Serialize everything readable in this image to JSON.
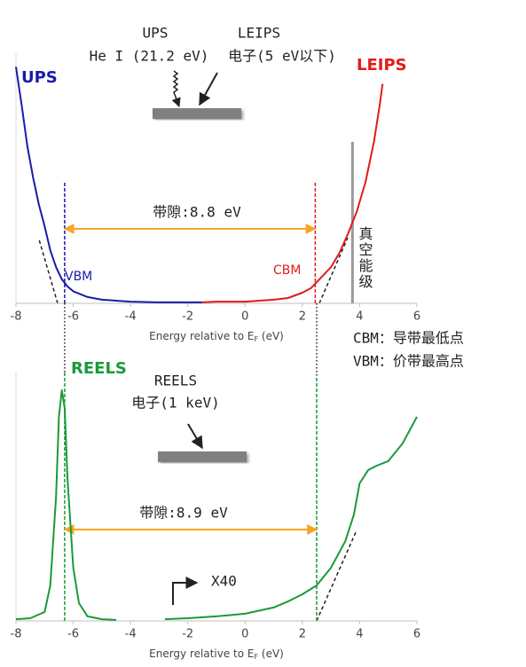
{
  "chart_data": [
    {
      "type": "line",
      "xlabel": [
        "Energy relative to E",
        "F",
        " (eV)"
      ],
      "xlim": [
        -8,
        6
      ],
      "xticks": [
        -8,
        -6,
        -4,
        -2,
        0,
        2,
        4,
        6
      ],
      "ylim": [
        0,
        100
      ],
      "series": [
        {
          "name": "UPS",
          "color": "#1a1aa8",
          "x": [
            -8,
            -7.8,
            -7.6,
            -7.4,
            -7.2,
            -7,
            -6.8,
            -6.6,
            -6.4,
            -6.2,
            -6,
            -5.5,
            -5,
            -4,
            -3,
            -2,
            -1.5
          ],
          "values": [
            98,
            82,
            65,
            52,
            41,
            32,
            22,
            15,
            10,
            7,
            5,
            2.6,
            1.5,
            0.7,
            0.4,
            0.4,
            0.4
          ]
        },
        {
          "name": "LEIPS",
          "color": "#e31a1a",
          "x": [
            -1.5,
            -1,
            0,
            1,
            1.5,
            2,
            2.3,
            2.6,
            3,
            3.3,
            3.6,
            3.9,
            4.2,
            4.5,
            4.7,
            4.8
          ],
          "values": [
            0.4,
            0.7,
            0.7,
            1.5,
            2.2,
            4.4,
            6.3,
            10,
            15,
            21,
            29,
            38,
            50,
            67,
            82,
            91
          ]
        }
      ],
      "markers": [
        {
          "label": "VBM",
          "x": -6.3,
          "color": "#1a1aa8"
        },
        {
          "label": "CBM",
          "x": 2.45,
          "color": "#e31a1a"
        },
        {
          "label": "真空能级",
          "x": 3.75,
          "color": "#999999"
        }
      ],
      "gap_label": "带隙:8.8 eV",
      "annotations": [
        "UPS",
        "LEIPS",
        "He I (21.2 eV)",
        "电子(5 eV以下)",
        "CBM：导带最低点",
        "VBM：价带最高点"
      ]
    },
    {
      "type": "line",
      "xlabel": [
        "Energy relative to E",
        "F",
        " (eV)"
      ],
      "xlim": [
        -8,
        6
      ],
      "xticks": [
        -8,
        -6,
        -4,
        -2,
        0,
        2,
        4,
        6
      ],
      "ylim": [
        0,
        100
      ],
      "series": [
        {
          "name": "REELS",
          "color": "#1a9a3a",
          "x": [
            -8,
            -7.5,
            -7,
            -6.8,
            -6.6,
            -6.5,
            -6.4,
            -6.3,
            -6.2,
            -6,
            -5.8,
            -5.5,
            -5,
            -4.5,
            -3.6,
            -2.8,
            -2,
            -1,
            0,
            1,
            1.5,
            2,
            2.5,
            3,
            3.5,
            3.8,
            4,
            4.3,
            4.6,
            5,
            5.5,
            6
          ],
          "values": [
            0.7,
            1.1,
            3.7,
            14.8,
            51.9,
            85.2,
            96.3,
            88.9,
            59.3,
            22.2,
            7.4,
            1.9,
            0.7,
            0.4,
            null,
            0.7,
            1.1,
            1.9,
            3,
            5.6,
            8.1,
            11.1,
            14.8,
            22.2,
            33.3,
            44.4,
            57.4,
            63,
            64.8,
            66.7,
            74.1,
            85.2
          ]
        }
      ],
      "markers": [
        {
          "x": -6.3,
          "color": "#1a9a3a"
        },
        {
          "x": 2.5,
          "color": "#1a9a3a"
        }
      ],
      "gap_label": "带隙:8.9 eV",
      "annotations": [
        "REELS",
        "电子(1 keV)",
        "X40"
      ]
    }
  ]
}
